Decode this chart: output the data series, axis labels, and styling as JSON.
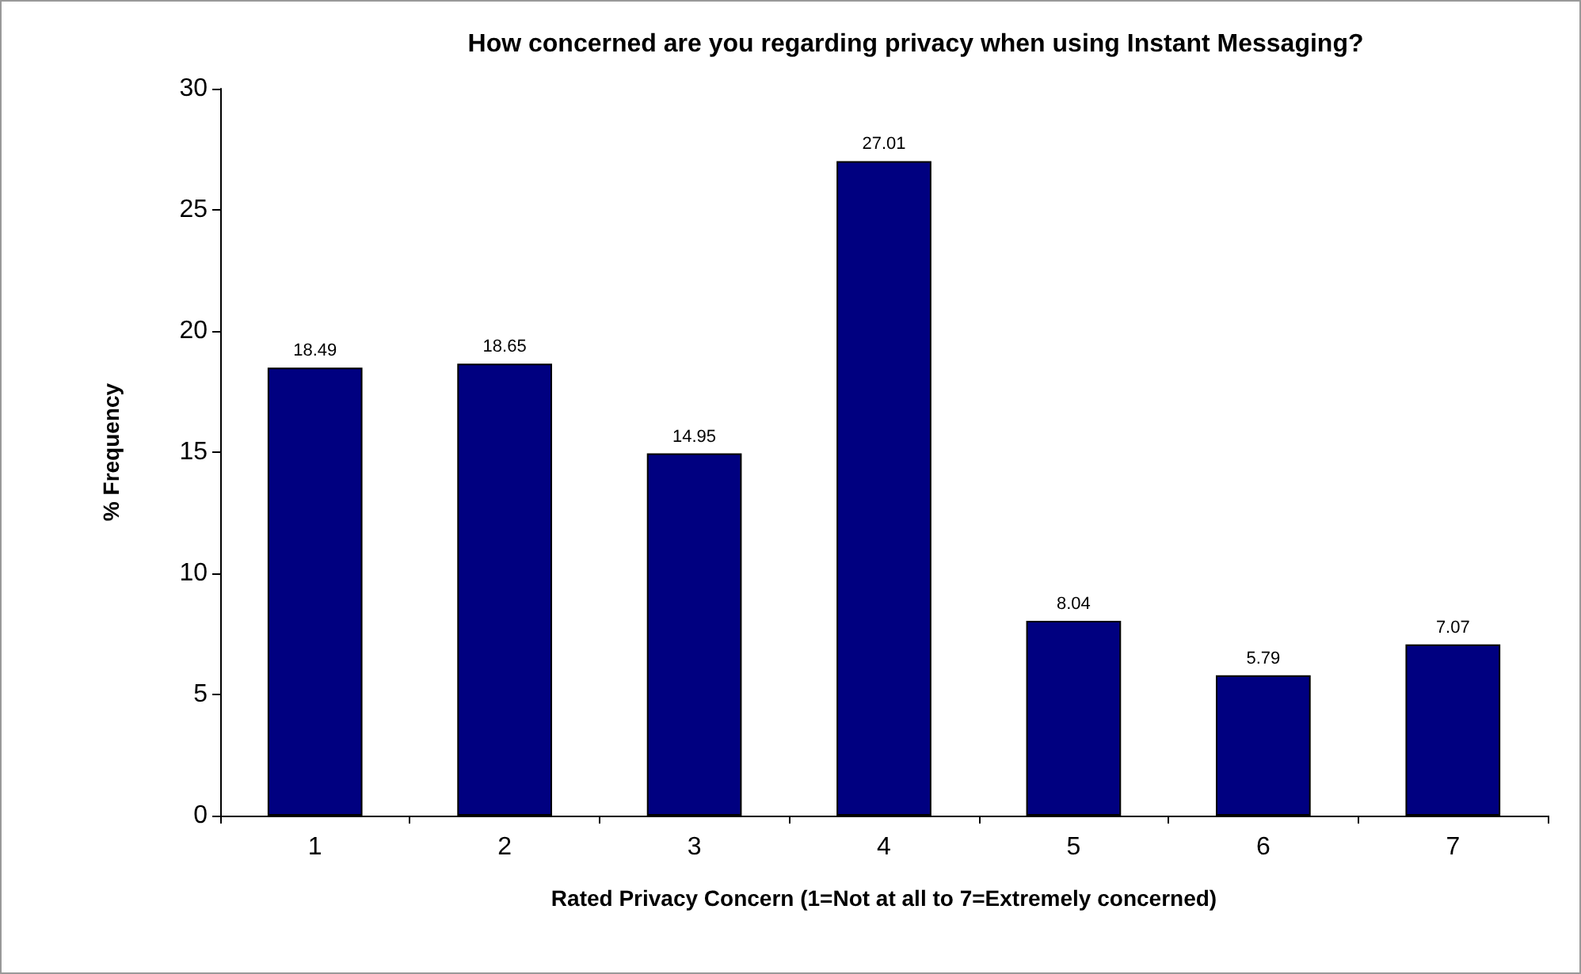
{
  "chart_data": {
    "type": "bar",
    "title": "How concerned are you regarding privacy when using Instant Messaging?",
    "xlabel": "Rated Privacy Concern (1=Not at all to 7=Extremely concerned)",
    "ylabel": "% Frequency",
    "categories": [
      "1",
      "2",
      "3",
      "4",
      "5",
      "6",
      "7"
    ],
    "values": [
      18.49,
      18.65,
      14.95,
      27.01,
      8.04,
      5.79,
      7.07
    ],
    "color": "#000080",
    "ylim": [
      0,
      30
    ],
    "yticks": [
      0,
      5,
      10,
      15,
      20,
      25,
      30
    ],
    "grid": false,
    "data_labels": true
  }
}
